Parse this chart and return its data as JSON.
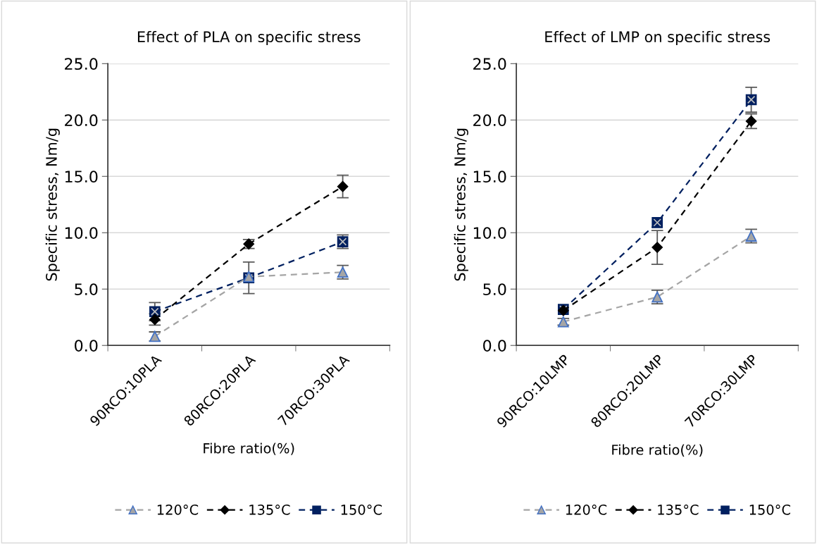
{
  "chart_data": [
    {
      "type": "line",
      "title": "Effect of PLA on specific stress",
      "xlabel": "Fibre ratio(%)",
      "ylabel": "Specific stress, Nm/g",
      "categories": [
        "90RCO:10PLA",
        "80RCO:20PLA",
        "70RCO:30PLA"
      ],
      "series": [
        {
          "name": "120°C",
          "color": "#a5a5a5",
          "marker": "triangle",
          "line_style": "dashed",
          "values": [
            0.8,
            6.1,
            6.5
          ],
          "errors": [
            0.4,
            null,
            0.6
          ]
        },
        {
          "name": "135°C",
          "color": "#000000",
          "marker": "diamond",
          "line_style": "dashed",
          "values": [
            2.3,
            9.0,
            14.1
          ],
          "errors": [
            0.5,
            0.4,
            1.0
          ]
        },
        {
          "name": "150°C",
          "color": "#002060",
          "marker": "square",
          "line_style": "dashed",
          "values": [
            3.0,
            6.0,
            9.2
          ],
          "errors": [
            0.8,
            1.4,
            0.6
          ]
        }
      ],
      "ylim": [
        0,
        25
      ],
      "yticks": [
        {
          "value": 0,
          "label": "0.0"
        },
        {
          "value": 5,
          "label": "5.0"
        },
        {
          "value": 10,
          "label": "10.0"
        },
        {
          "value": 15,
          "label": "15.0"
        },
        {
          "value": 20,
          "label": "20.0"
        },
        {
          "value": 25,
          "label": "25.0"
        }
      ],
      "grid": "y",
      "legend": "bottom"
    },
    {
      "type": "line",
      "title": "Effect of LMP on specific stress",
      "xlabel": "Fibre ratio(%)",
      "ylabel": "Specific stress, Nm/g",
      "categories": [
        "90RCO:10LMP",
        "80RCO:20LMP",
        "70RCO:30LMP"
      ],
      "series": [
        {
          "name": "120°C",
          "color": "#a5a5a5",
          "marker": "triangle",
          "line_style": "dashed",
          "values": [
            2.1,
            4.3,
            9.7
          ],
          "errors": [
            0.3,
            0.6,
            0.6
          ]
        },
        {
          "name": "135°C",
          "color": "#000000",
          "marker": "diamond",
          "line_style": "dashed",
          "values": [
            3.1,
            8.7,
            19.9
          ],
          "errors": [
            null,
            1.5,
            0.65
          ]
        },
        {
          "name": "150°C",
          "color": "#002060",
          "marker": "square",
          "line_style": "dashed",
          "values": [
            3.2,
            10.9,
            21.8
          ],
          "errors": [
            null,
            null,
            1.1
          ]
        }
      ],
      "ylim": [
        0,
        25
      ],
      "yticks": [
        {
          "value": 0,
          "label": "0.0"
        },
        {
          "value": 5,
          "label": "5.0"
        },
        {
          "value": 10,
          "label": "10.0"
        },
        {
          "value": 15,
          "label": "15.0"
        },
        {
          "value": 20,
          "label": "20.0"
        },
        {
          "value": 25,
          "label": "25.0"
        }
      ],
      "grid": "y",
      "legend": "bottom"
    }
  ]
}
